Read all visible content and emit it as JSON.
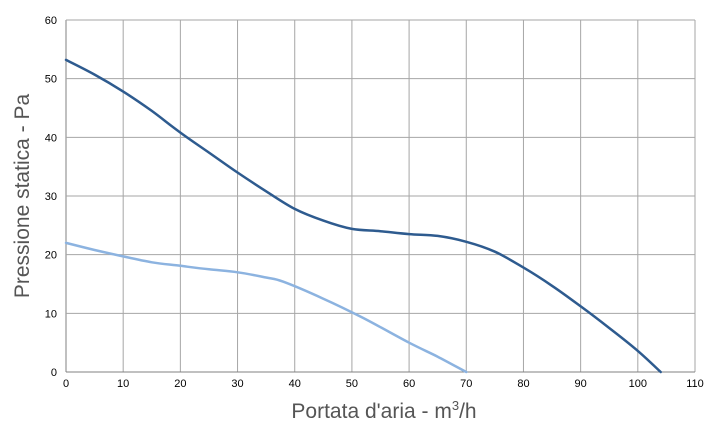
{
  "chart_data": {
    "type": "line",
    "xlabel": "Portata d'aria - m",
    "xlabel_sup": "3",
    "xlabel_suffix": "/h",
    "ylabel": "Pressione statica - Pa",
    "xlim": [
      0,
      110
    ],
    "ylim": [
      0,
      60
    ],
    "x_ticks": [
      "0",
      "10",
      "20",
      "30",
      "40",
      "50",
      "60",
      "70",
      "80",
      "90",
      "100",
      "110"
    ],
    "y_ticks": [
      "0",
      "10",
      "20",
      "30",
      "40",
      "50",
      "60"
    ],
    "grid": true,
    "series": [
      {
        "color": "#2e5b8f",
        "x": [
          0,
          5,
          10,
          15,
          20,
          25,
          30,
          35,
          40,
          45,
          50,
          55,
          60,
          65,
          70,
          75,
          80,
          85,
          90,
          95,
          100,
          104
        ],
        "y": [
          53.2,
          50.7,
          47.8,
          44.5,
          40.8,
          37.4,
          34.0,
          30.8,
          27.8,
          25.8,
          24.4,
          24.0,
          23.5,
          23.2,
          22.2,
          20.5,
          17.8,
          14.7,
          11.2,
          7.5,
          3.6,
          0
        ]
      },
      {
        "color": "#8cb3e0",
        "x": [
          0,
          5,
          10,
          15,
          20,
          25,
          30,
          35,
          38,
          45,
          52,
          60,
          65,
          70
        ],
        "y": [
          22.0,
          20.8,
          19.7,
          18.7,
          18.1,
          17.5,
          17.0,
          16.1,
          15.4,
          12.5,
          9.2,
          5.0,
          2.6,
          0
        ]
      }
    ]
  }
}
